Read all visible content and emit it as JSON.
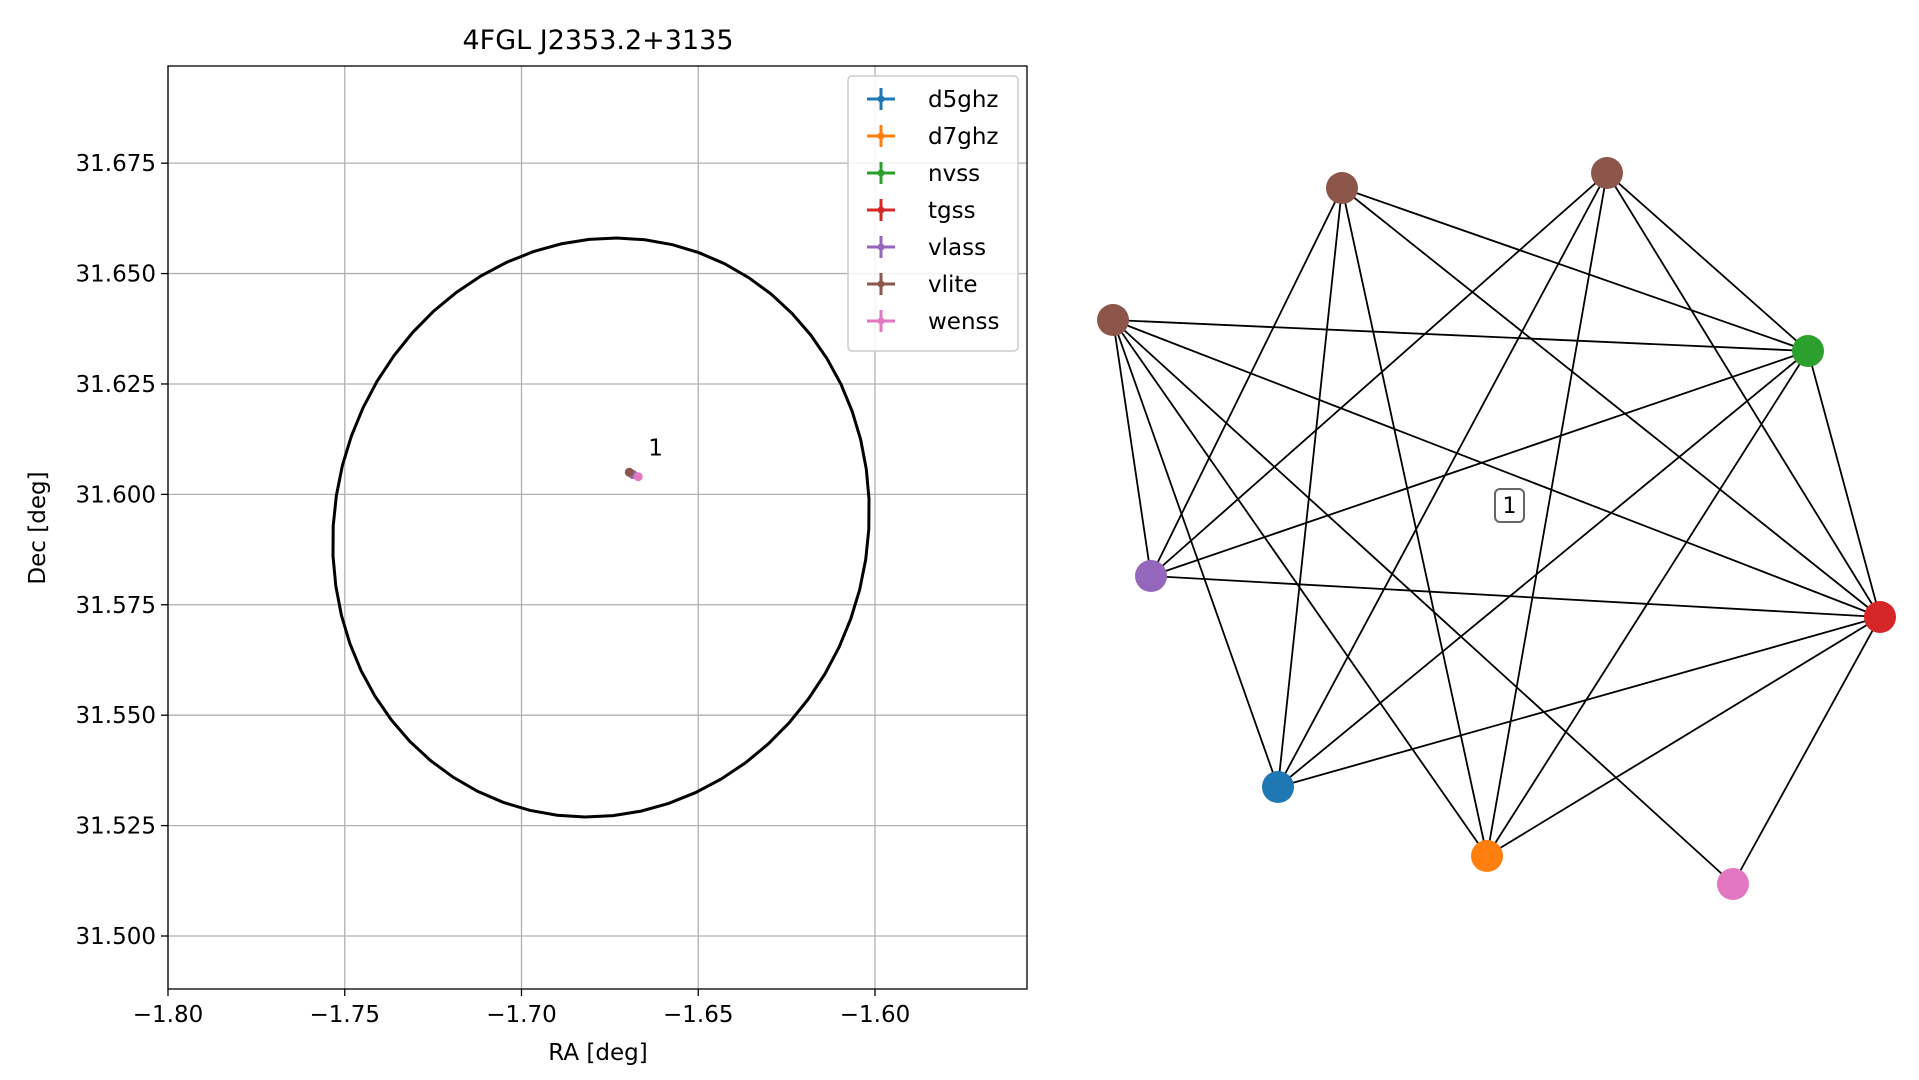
{
  "chart_data": [
    {
      "type": "scatter",
      "title": "4FGL J2353.2+3135",
      "xlabel": "RA [deg]",
      "ylabel": "Dec [deg]",
      "xlim": [
        -1.8,
        -1.557
      ],
      "ylim": [
        31.488,
        31.697
      ],
      "xticks": [
        -1.8,
        -1.75,
        -1.7,
        -1.65,
        -1.6
      ],
      "xtick_labels": [
        "−1.80",
        "−1.75",
        "−1.70",
        "−1.65",
        "−1.60"
      ],
      "yticks": [
        31.5,
        31.525,
        31.55,
        31.575,
        31.6,
        31.625,
        31.65,
        31.675
      ],
      "ytick_labels": [
        "31.500",
        "31.525",
        "31.550",
        "31.575",
        "31.600",
        "31.625",
        "31.650",
        "31.675"
      ],
      "grid": true,
      "legend_position": "top-right",
      "series": [
        {
          "name": "d5ghz",
          "color": "#1f77b4",
          "x": [
            -1.6685
          ],
          "y": [
            31.6045
          ]
        },
        {
          "name": "d7ghz",
          "color": "#ff7f0e",
          "x": [
            -1.6685
          ],
          "y": [
            31.6045
          ]
        },
        {
          "name": "nvss",
          "color": "#2ca02c",
          "x": [
            -1.6685
          ],
          "y": [
            31.6045
          ]
        },
        {
          "name": "tgss",
          "color": "#d62728",
          "x": [
            -1.6685
          ],
          "y": [
            31.6045
          ]
        },
        {
          "name": "vlass",
          "color": "#9467bd",
          "x": [
            -1.6685
          ],
          "y": [
            31.6045
          ]
        },
        {
          "name": "vlite",
          "color": "#8c564b",
          "x": [
            -1.6695
          ],
          "y": [
            31.605
          ]
        },
        {
          "name": "wenss",
          "color": "#e377c2",
          "x": [
            -1.667
          ],
          "y": [
            31.604
          ]
        }
      ],
      "annotations": [
        {
          "text": "1",
          "x": -1.665,
          "y": 31.6075
        }
      ],
      "ellipse": {
        "center": [
          -1.6775,
          31.5925
        ],
        "semi_x": 0.0762,
        "semi_y": 0.0652,
        "rotation_deg": 10
      }
    },
    {
      "type": "network",
      "label": "1",
      "nodes": [
        {
          "id": "vlite_a",
          "color": "#8c564b"
        },
        {
          "id": "vlite_b",
          "color": "#8c564b"
        },
        {
          "id": "vlite_c",
          "color": "#8c564b"
        },
        {
          "id": "nvss",
          "color": "#2ca02c"
        },
        {
          "id": "vlass",
          "color": "#9467bd"
        },
        {
          "id": "tgss",
          "color": "#d62728"
        },
        {
          "id": "d5ghz",
          "color": "#1f77b4"
        },
        {
          "id": "d7ghz",
          "color": "#ff7f0e"
        },
        {
          "id": "wenss",
          "color": "#e377c2"
        }
      ],
      "edges": [
        [
          "vlite_c",
          "nvss"
        ],
        [
          "vlite_c",
          "vlass"
        ],
        [
          "vlite_c",
          "tgss"
        ],
        [
          "vlite_c",
          "d5ghz"
        ],
        [
          "vlite_c",
          "d7ghz"
        ],
        [
          "vlite_c",
          "wenss"
        ],
        [
          "vlite_a",
          "vlass"
        ],
        [
          "vlite_a",
          "nvss"
        ],
        [
          "vlite_a",
          "tgss"
        ],
        [
          "vlite_a",
          "d5ghz"
        ],
        [
          "vlite_a",
          "d7ghz"
        ],
        [
          "vlite_b",
          "nvss"
        ],
        [
          "vlite_b",
          "tgss"
        ],
        [
          "vlite_b",
          "vlass"
        ],
        [
          "vlite_b",
          "d5ghz"
        ],
        [
          "vlite_b",
          "d7ghz"
        ],
        [
          "nvss",
          "vlass"
        ],
        [
          "nvss",
          "tgss"
        ],
        [
          "nvss",
          "d5ghz"
        ],
        [
          "nvss",
          "d7ghz"
        ],
        [
          "vlass",
          "tgss"
        ],
        [
          "tgss",
          "d5ghz"
        ],
        [
          "tgss",
          "d7ghz"
        ],
        [
          "tgss",
          "wenss"
        ]
      ]
    }
  ]
}
